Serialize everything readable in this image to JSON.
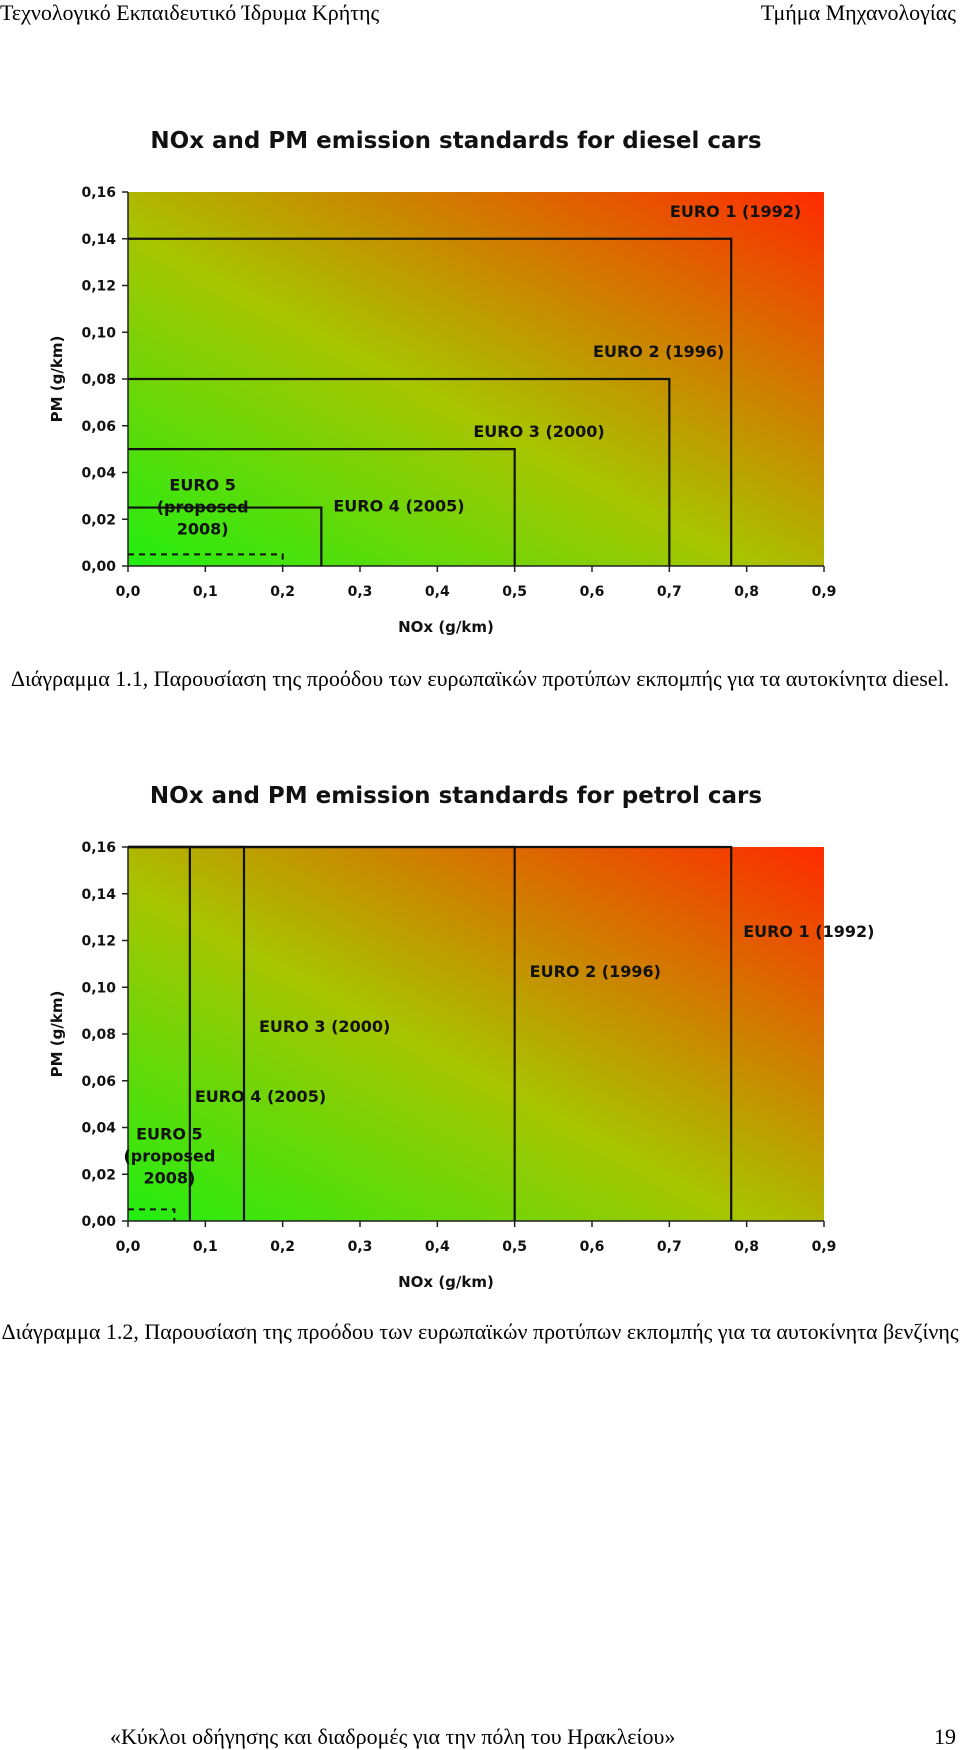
{
  "header": {
    "left": "Τεχνολογικό Εκπαιδευτικό Ίδρυμα Κρήτης",
    "right": "Τμήμα Μηχανολογίας"
  },
  "captions": [
    "Διάγραμμα 1.1, Παρουσίαση της προόδου των ευρωπαϊκών προτύπων εκπομπής για τα αυτοκίνητα diesel.",
    "Διάγραμμα 1.2, Παρουσίαση της προόδου των ευρωπαϊκών προτύπων εκπομπής για τα αυτοκίνητα βενζίνης"
  ],
  "footer": {
    "text": "«Κύκλοι οδήγησης και διαδρομές για την πόλη του Ηρακλείου»",
    "page": "19"
  },
  "colors": {
    "low": "#22ee11",
    "mid": "#a8c400",
    "high": "#ff2a00",
    "line": "#111111"
  },
  "chart_data": [
    {
      "type": "area",
      "title": "NOx and PM emission standards for diesel cars",
      "xlabel": "NOx (g/km)",
      "ylabel": "PM (g/km)",
      "xlim": [
        0,
        0.9
      ],
      "ylim": [
        0,
        0.16
      ],
      "xticks": [
        "0,0",
        "0,1",
        "0,2",
        "0,3",
        "0,4",
        "0,5",
        "0,6",
        "0,7",
        "0,8",
        "0,9"
      ],
      "yticks": [
        "0,00",
        "0,02",
        "0,04",
        "0,06",
        "0,08",
        "0,10",
        "0,12",
        "0,14",
        "0,16"
      ],
      "standards": [
        {
          "name": "EURO 1 (1992)",
          "nox": 0.78,
          "pm": 0.14,
          "lines": [
            "EURO 1 (1992)"
          ]
        },
        {
          "name": "EURO 2 (1996)",
          "nox": 0.7,
          "pm": 0.08,
          "lines": [
            "EURO 2 (1996)"
          ]
        },
        {
          "name": "EURO 3 (2000)",
          "nox": 0.5,
          "pm": 0.05,
          "lines": [
            "EURO 3 (2000)"
          ]
        },
        {
          "name": "EURO 4 (2005)",
          "nox": 0.25,
          "pm": 0.025,
          "lines": [
            "EURO 4 (2005)"
          ]
        },
        {
          "name": "EURO 5 (proposed 2008)",
          "nox": 0.2,
          "pm": 0.005,
          "dashed": true,
          "lines": [
            "EURO 5",
            "(proposed",
            "2008)"
          ]
        }
      ]
    },
    {
      "type": "area",
      "title": "NOx and PM emission standards for petrol cars",
      "xlabel": "NOx (g/km)",
      "ylabel": "PM (g/km)",
      "xlim": [
        0,
        0.9
      ],
      "ylim": [
        0,
        0.16
      ],
      "xticks": [
        "0,0",
        "0,1",
        "0,2",
        "0,3",
        "0,4",
        "0,5",
        "0,6",
        "0,7",
        "0,8",
        "0,9"
      ],
      "yticks": [
        "0,00",
        "0,02",
        "0,04",
        "0,06",
        "0,08",
        "0,10",
        "0,12",
        "0,14",
        "0,16"
      ],
      "standards": [
        {
          "name": "EURO 1 (1992)",
          "nox": 0.78,
          "pm": 0.16,
          "lines": [
            "EURO 1 (1992)"
          ]
        },
        {
          "name": "EURO 2 (1996)",
          "nox": 0.5,
          "pm": 0.16,
          "lines": [
            "EURO 2 (1996)"
          ]
        },
        {
          "name": "EURO 3 (2000)",
          "nox": 0.15,
          "pm": 0.16,
          "lines": [
            "EURO 3 (2000)"
          ]
        },
        {
          "name": "EURO 4 (2005)",
          "nox": 0.08,
          "pm": 0.16,
          "lines": [
            "EURO 4 (2005)"
          ]
        },
        {
          "name": "EURO 5 (proposed 2008)",
          "nox": 0.06,
          "pm": 0.005,
          "dashed": true,
          "lines": [
            "EURO 5",
            "(proposed",
            "2008)"
          ]
        }
      ]
    }
  ]
}
